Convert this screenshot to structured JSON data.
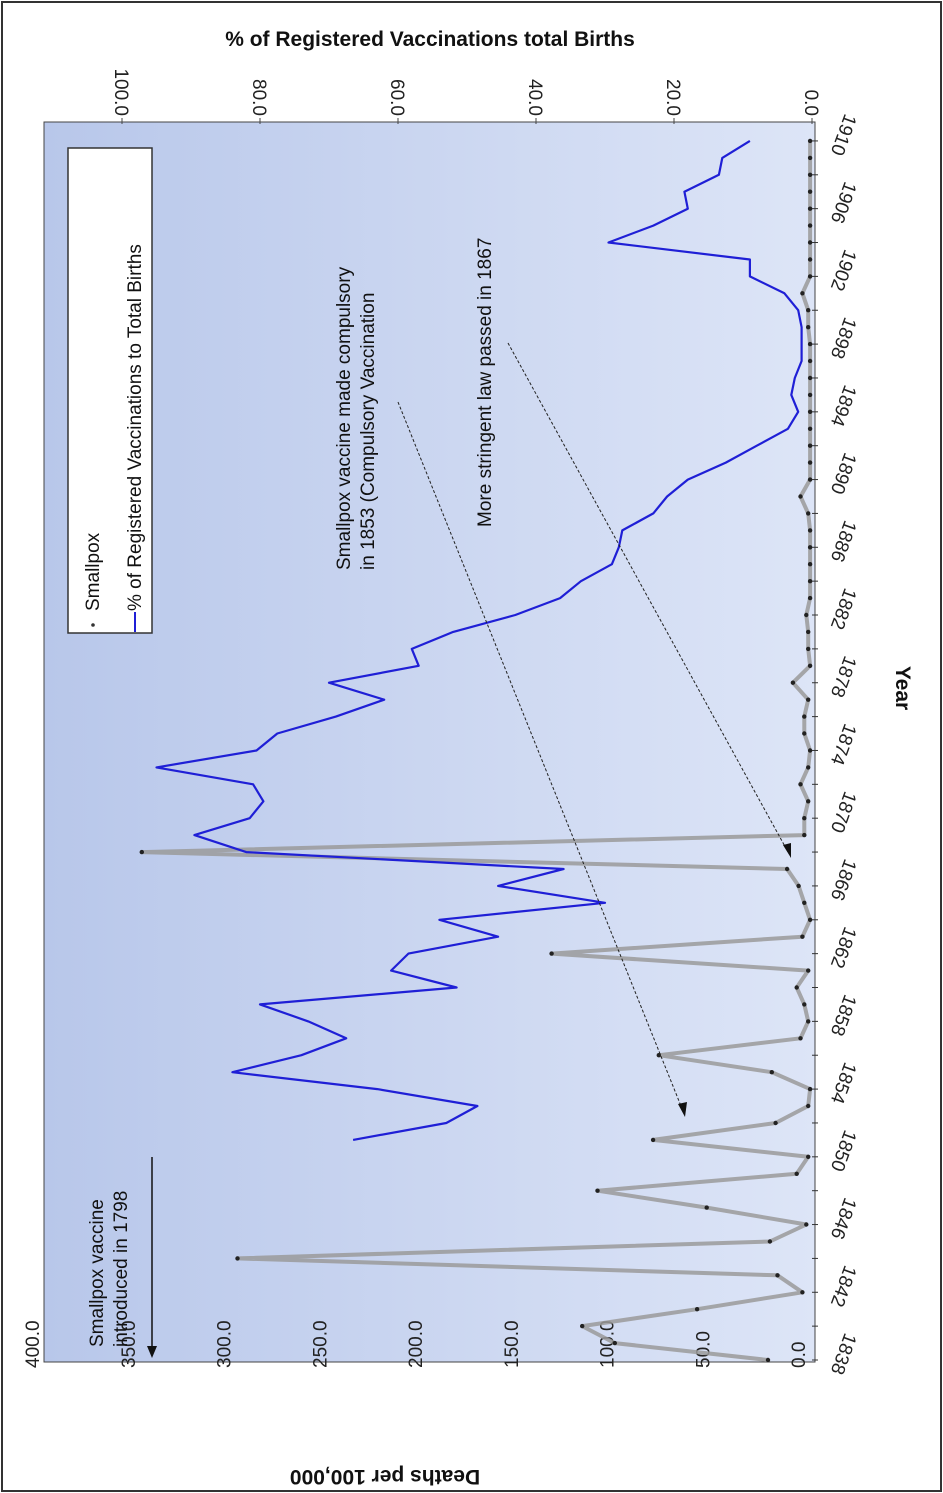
{
  "chart_data": {
    "type": "line",
    "orientation": "rotated-90-clockwise",
    "xlabel": "Year",
    "x_ticks": [
      "1838",
      "1842",
      "1846",
      "1850",
      "1854",
      "1858",
      "1862",
      "1866",
      "1870",
      "1874",
      "1878",
      "1882",
      "1886",
      "1890",
      "1894",
      "1898",
      "1902",
      "1906",
      "1910"
    ],
    "xlim": [
      1838,
      1911
    ],
    "left_axis": {
      "label": "Deaths per 100,000",
      "ylim": [
        0,
        400
      ],
      "ticks": [
        "0.0",
        "50.0",
        "100.0",
        "150.0",
        "200.0",
        "250.0",
        "300.0",
        "350.0",
        "400.0"
      ]
    },
    "right_axis": {
      "label": "% of Registered Vaccinations total Births",
      "ylim": [
        0,
        100
      ],
      "ticks": [
        "0.0",
        "20.0",
        "40.0",
        "60.0",
        "80.0",
        "100.0"
      ]
    },
    "legend": {
      "placement": "top-right",
      "entries": [
        "Smallpox",
        "% of Registered Vaccinations to Total Births"
      ]
    },
    "series": [
      {
        "name": "Smallpox",
        "axis": "left",
        "color": "#7f7f7f",
        "x": [
          1838,
          1839,
          1840,
          1841,
          1842,
          1843,
          1844,
          1845,
          1846,
          1847,
          1848,
          1849,
          1850,
          1851,
          1852,
          1853,
          1854,
          1855,
          1856,
          1857,
          1858,
          1859,
          1860,
          1861,
          1862,
          1863,
          1864,
          1865,
          1866,
          1867,
          1868,
          1869,
          1870,
          1871,
          1872,
          1873,
          1874,
          1875,
          1876,
          1877,
          1878,
          1879,
          1880,
          1881,
          1882,
          1883,
          1884,
          1885,
          1886,
          1887,
          1888,
          1889,
          1890,
          1891,
          1892,
          1893,
          1894,
          1895,
          1896,
          1897,
          1898,
          1899,
          1900,
          1901,
          1902,
          1903,
          1904,
          1905,
          1906,
          1907,
          1908,
          1909,
          1910
        ],
        "values": [
          23,
          103,
          120,
          60,
          5,
          18,
          300,
          22,
          3,
          55,
          112,
          8,
          2,
          83,
          19,
          2,
          1,
          21,
          80,
          6,
          2,
          4,
          8,
          2,
          136,
          5,
          1,
          4,
          7,
          13,
          350,
          4,
          4,
          2,
          6,
          2,
          1,
          4,
          4,
          2,
          10,
          1,
          2,
          2,
          3,
          1,
          1,
          1,
          1,
          1,
          2,
          6,
          1,
          1,
          1,
          1,
          1,
          1,
          1,
          1,
          1,
          2,
          2,
          5,
          1,
          1,
          1,
          1,
          1,
          1,
          1,
          1,
          1
        ]
      },
      {
        "name": "% of Registered Vaccinations to Total Births",
        "axis": "right",
        "color": "#1f1fd6",
        "x": [
          1851,
          1852,
          1853,
          1854,
          1855,
          1856,
          1857,
          1858,
          1859,
          1860,
          1861,
          1862,
          1863,
          1864,
          1865,
          1866,
          1867,
          1868,
          1869,
          1870,
          1871,
          1872,
          1873,
          1874,
          1875,
          1876,
          1877,
          1878,
          1879,
          1880,
          1881,
          1882,
          1883,
          1884,
          1885,
          1886,
          1887,
          1888,
          1889,
          1890,
          1891,
          1892,
          1893,
          1894,
          1895,
          1896,
          1897,
          1898,
          1899,
          1900,
          1901,
          1902,
          1903,
          1904,
          1905,
          1906,
          1907,
          1908,
          1909,
          1910
        ],
        "values": [
          66.5,
          53,
          48.5,
          63,
          84,
          74,
          67.5,
          73,
          80,
          51.5,
          61,
          58.5,
          45.5,
          54,
          30,
          45.5,
          36,
          82,
          89.5,
          81.5,
          79.5,
          81,
          95,
          80.5,
          77.5,
          69,
          62,
          70,
          57,
          58,
          52,
          43,
          36.5,
          33.5,
          29,
          28,
          27.5,
          23,
          21,
          18,
          12.5,
          8,
          3.5,
          2,
          3,
          2.5,
          1.5,
          1.5,
          1.5,
          2,
          4,
          9,
          9,
          29.5,
          23,
          18,
          18.5,
          13.5,
          13,
          9
        ]
      }
    ],
    "annotations": [
      {
        "lines": [
          "Smallpox vaccine",
          "introduced in 1798"
        ]
      },
      {
        "lines": [
          "Smallpox vaccine made compulsory",
          "in 1853 (Compulsory Vaccination"
        ]
      },
      {
        "lines": [
          "More stringent law passed in 1867"
        ]
      }
    ],
    "grid": false,
    "background": {
      "from": "#b8c7ea",
      "to": "#dde5f7"
    }
  }
}
